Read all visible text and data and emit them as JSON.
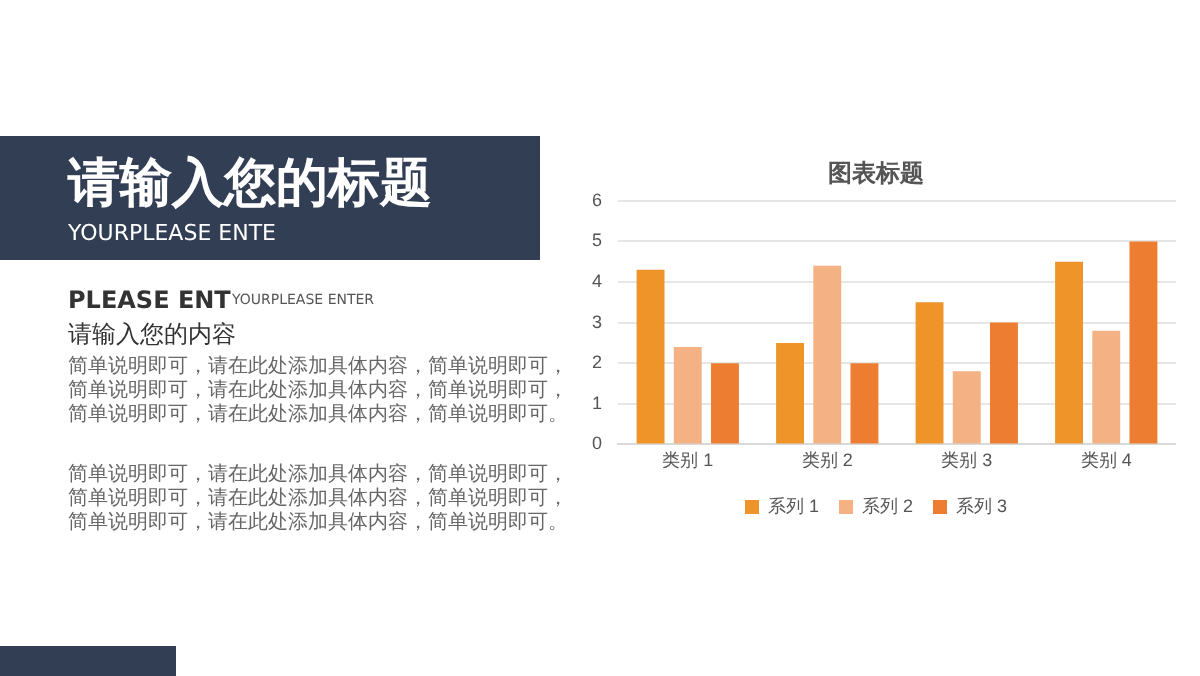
{
  "chart_data": {
    "type": "bar",
    "title": "图表标题",
    "categories": [
      "类别 1",
      "类别 2",
      "类别 3",
      "类别 4"
    ],
    "series": [
      {
        "name": "系列 1",
        "color": "#ee9428",
        "values": [
          4.3,
          2.5,
          3.5,
          4.5
        ]
      },
      {
        "name": "系列 2",
        "color": "#f4b183",
        "values": [
          2.4,
          4.4,
          1.8,
          2.8
        ]
      },
      {
        "name": "系列 3",
        "color": "#ed7d31",
        "values": [
          2,
          2,
          3,
          5
        ]
      }
    ],
    "ylim": [
      0,
      6
    ],
    "yticks": [
      0,
      1,
      2,
      3,
      4,
      5,
      6
    ],
    "grid": "y",
    "legend": "bottom",
    "annotations": [
      "请输入您的标题",
      "YOURPLEASE ENTE",
      "PLEASE ENT",
      "YOURPLEASE ENTER",
      "请输入您的内容",
      "简单说明即可，请在此处添加具体内容，简单说明即可，简单说明即可，请在此处添加具体内容，简单说明即可，简单说明即可，请在此处添加具体内容，简单说明即可。",
      "简单说明即可，请在此处添加具体内容，简单说明即可，简单说明即可，请在此处添加具体内容，简单说明即可，简单说明即可，请在此处添加具体内容，简单说明即可。"
    ]
  }
}
